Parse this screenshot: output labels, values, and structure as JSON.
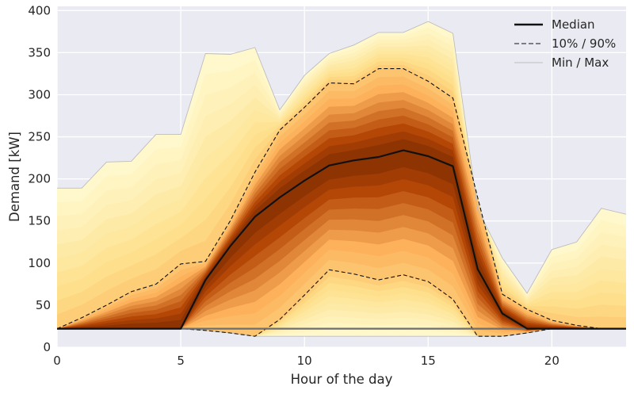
{
  "chart_data": {
    "type": "area",
    "title": "",
    "xlabel": "Hour of the day",
    "ylabel": "Demand [kW]",
    "xlim": [
      0,
      23
    ],
    "ylim": [
      0,
      405
    ],
    "xticks": [
      0,
      5,
      10,
      15,
      20
    ],
    "yticks": [
      0,
      50,
      100,
      150,
      200,
      250,
      300,
      350,
      400
    ],
    "grid": true,
    "legend_position": "top-right",
    "x": [
      0,
      1,
      2,
      3,
      4,
      5,
      6,
      7,
      8,
      9,
      10,
      11,
      12,
      13,
      14,
      15,
      16,
      17,
      18,
      19,
      20,
      21,
      22,
      23
    ],
    "series": [
      {
        "name": "Median",
        "style": "solid",
        "color": "#111111",
        "values": [
          22,
          22,
          22,
          22,
          22,
          22,
          80,
          120,
          155,
          178,
          198,
          216,
          222,
          226,
          234,
          227,
          215,
          93,
          40,
          22,
          22,
          22,
          22,
          22
        ]
      },
      {
        "name": "10% / 90%",
        "style": "dashed",
        "color": "#111111",
        "upper": [
          22,
          35,
          50,
          66,
          75,
          99,
          102,
          150,
          208,
          258,
          285,
          314,
          313,
          331,
          331,
          316,
          296,
          178,
          63,
          45,
          32,
          26,
          22,
          22
        ],
        "lower": [
          22,
          22,
          22,
          22,
          22,
          22,
          20,
          17,
          13,
          33,
          62,
          92,
          87,
          80,
          86,
          78,
          57,
          13,
          13,
          17,
          22,
          22,
          22,
          22
        ]
      },
      {
        "name": "Min / Max",
        "style": "thin",
        "color": "#bdbdbd",
        "upper": [
          189,
          189,
          220,
          221,
          253,
          253,
          349,
          348,
          356,
          282,
          323,
          349,
          359,
          374,
          374,
          387,
          373,
          164,
          106,
          64,
          116,
          125,
          165,
          158
        ],
        "lower": [
          22,
          22,
          22,
          22,
          22,
          22,
          20,
          17,
          13,
          13,
          13,
          13,
          13,
          13,
          13,
          13,
          13,
          13,
          13,
          17,
          22,
          22,
          22,
          22
        ]
      }
    ],
    "colors": {
      "background": "#eaeaf2",
      "grid": "#ffffff",
      "fan_outer": "#fff8cc",
      "fan_mid": "#fdb15b",
      "fan_inner": "#b44706",
      "fan_core": "#7a2a00"
    }
  }
}
